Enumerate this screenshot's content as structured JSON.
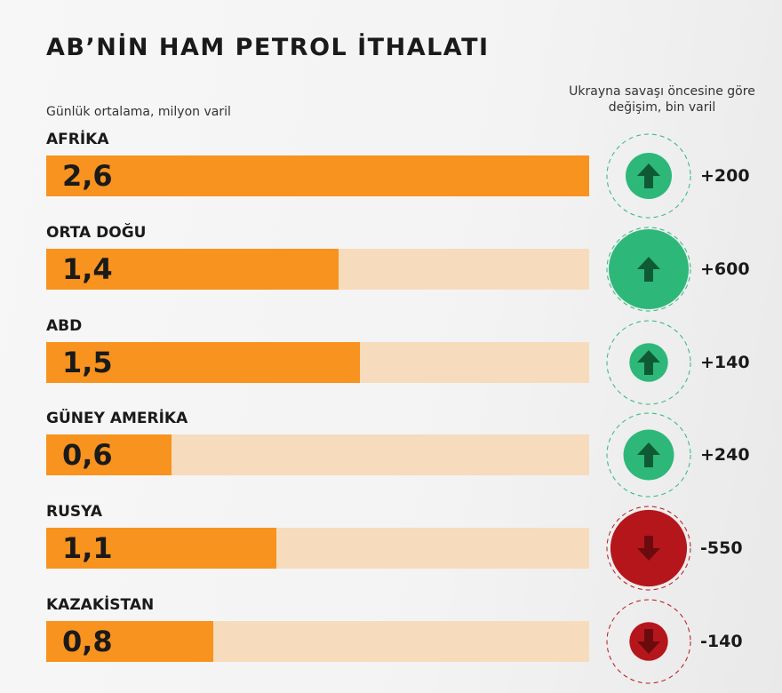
{
  "chart_data": {
    "type": "bar",
    "title": "AB’NİN HAM PETROL İTHALATI",
    "ylabel": "Günlük ortalama, milyon varil",
    "change_label": "Ukrayna savaşı öncesine göre değişim, bin varil",
    "xlim": [
      0,
      2.6
    ],
    "categories": [
      "AFRİKA",
      "ORTA DOĞU",
      "ABD",
      "GÜNEY AMERİKA",
      "RUSYA",
      "KAZAKİSTAN"
    ],
    "values": [
      2.6,
      1.4,
      1.5,
      0.6,
      1.1,
      0.8
    ],
    "value_labels": [
      "2,6",
      "1,4",
      "1,5",
      "0,6",
      "1,1",
      "0,8"
    ],
    "changes": [
      200,
      600,
      140,
      240,
      -550,
      -140
    ],
    "change_labels": [
      "+200",
      "+600",
      "+140",
      "+240",
      "-550",
      "-140"
    ]
  },
  "colors": {
    "bar": "#f7931e",
    "track": "#f6dcbc",
    "up": "#2db87a",
    "up_dark": "#0f5a34",
    "down": "#b5161c",
    "down_dark": "#6b0b0e"
  }
}
